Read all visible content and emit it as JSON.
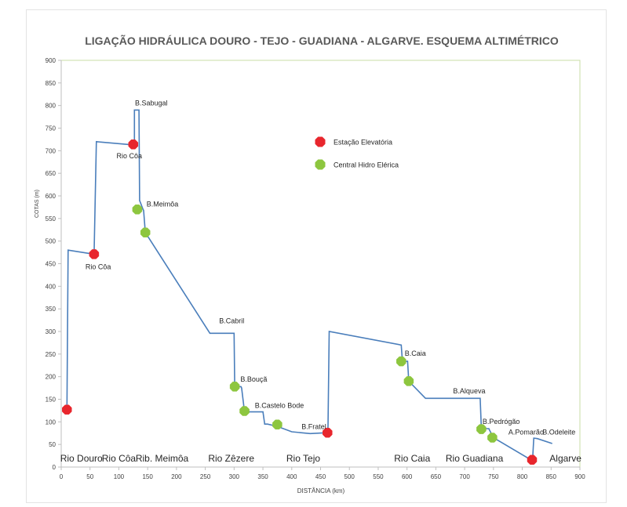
{
  "chart_data": {
    "type": "line",
    "title": "LIGAÇÃO HIDRÁULICA DOURO - TEJO - GUADIANA - ALGARVE. ESQUEMA ALTIMÉTRICO",
    "xlabel": "DISTÂNCIA (km)",
    "ylabel": "COTAS (m)",
    "xlim": [
      0,
      900
    ],
    "ylim": [
      0,
      900
    ],
    "xticks": [
      "0",
      "50",
      "100",
      "150",
      "200",
      "250",
      "300",
      "350",
      "400",
      "450",
      "500",
      "550",
      "600",
      "650",
      "700",
      "750",
      "800",
      "850",
      "900"
    ],
    "yticks": [
      "0",
      "50",
      "100",
      "150",
      "200",
      "250",
      "300",
      "350",
      "400",
      "450",
      "500",
      "550",
      "600",
      "650",
      "700",
      "750",
      "800",
      "850",
      "900"
    ],
    "grid": false,
    "line_color": "#4a7ebb",
    "series": [
      {
        "x": [
          10,
          12,
          57,
          61,
          123,
          127,
          127,
          135,
          136,
          142,
          143,
          146,
          258,
          300,
          301,
          312,
          313,
          318,
          350,
          353,
          358,
          375,
          400,
          432,
          461,
          462,
          463,
          465,
          590,
          592,
          601,
          603,
          632,
          727,
          729,
          742,
          743,
          750,
          815,
          816,
          818,
          820,
          826,
          852
        ],
        "y": [
          127,
          480,
          471,
          720,
          713,
          715,
          790,
          790,
          590,
          570,
          568,
          519,
          296,
          296,
          178,
          178,
          175,
          122,
          122,
          95,
          95,
          90,
          78,
          74,
          76,
          74,
          90,
          300,
          270,
          234,
          234,
          190,
          152,
          152,
          85,
          85,
          82,
          65,
          16,
          16,
          20,
          64,
          63,
          52
        ]
      }
    ],
    "markers": [
      {
        "x": 10,
        "y": 127,
        "type": "station"
      },
      {
        "x": 57,
        "y": 471,
        "type": "station"
      },
      {
        "x": 125,
        "y": 714,
        "type": "station"
      },
      {
        "x": 132,
        "y": 570,
        "type": "plant"
      },
      {
        "x": 146,
        "y": 519,
        "type": "plant"
      },
      {
        "x": 301,
        "y": 178,
        "type": "plant"
      },
      {
        "x": 318,
        "y": 124,
        "type": "plant"
      },
      {
        "x": 375,
        "y": 94,
        "type": "plant"
      },
      {
        "x": 462,
        "y": 76,
        "type": "station"
      },
      {
        "x": 590,
        "y": 234,
        "type": "plant"
      },
      {
        "x": 603,
        "y": 190,
        "type": "plant"
      },
      {
        "x": 729,
        "y": 84,
        "type": "plant"
      },
      {
        "x": 748,
        "y": 65,
        "type": "plant"
      },
      {
        "x": 817,
        "y": 16,
        "type": "station"
      }
    ],
    "marker_colors": {
      "station": "#e8262d",
      "plant": "#8dc63f"
    },
    "legend": {
      "placement": "upper-center",
      "items": [
        {
          "label": "Estação Elevatória",
          "type": "station"
        },
        {
          "label": "Central Hidro Elérica",
          "type": "plant"
        }
      ]
    },
    "annotations": [
      {
        "text": "B.Sabugal",
        "x": 128,
        "y": 800
      },
      {
        "text": "Rio Côa",
        "x": 96,
        "y": 683
      },
      {
        "text": "B.Meimôa",
        "x": 148,
        "y": 577
      },
      {
        "text": "Rio Côa",
        "x": 42,
        "y": 438
      },
      {
        "text": "B.Cabril",
        "x": 274,
        "y": 318
      },
      {
        "text": "B.Bouçã",
        "x": 311,
        "y": 189
      },
      {
        "text": "B.Castelo Bode",
        "x": 336,
        "y": 131
      },
      {
        "text": "B.Fratel",
        "x": 417,
        "y": 84
      },
      {
        "text": "B.Caia",
        "x": 596,
        "y": 246
      },
      {
        "text": "B.Alqueva",
        "x": 680,
        "y": 163
      },
      {
        "text": "B.Pedrógão",
        "x": 731,
        "y": 95
      },
      {
        "text": "A.Pomarão",
        "x": 776,
        "y": 72
      },
      {
        "text": "B.Odeleite",
        "x": 835,
        "y": 72
      }
    ],
    "region_labels": [
      {
        "text": "Rio Douro",
        "x": 35
      },
      {
        "text": "Rio Côa",
        "x": 100
      },
      {
        "text": "Rib. Meimôa",
        "x": 175
      },
      {
        "text": "Rio Zêzere",
        "x": 295
      },
      {
        "text": "Rio Tejo",
        "x": 420
      },
      {
        "text": "Rio Caia",
        "x": 609
      },
      {
        "text": "Rio Guadiana",
        "x": 717
      },
      {
        "text": "Algarve",
        "x": 875
      }
    ]
  }
}
